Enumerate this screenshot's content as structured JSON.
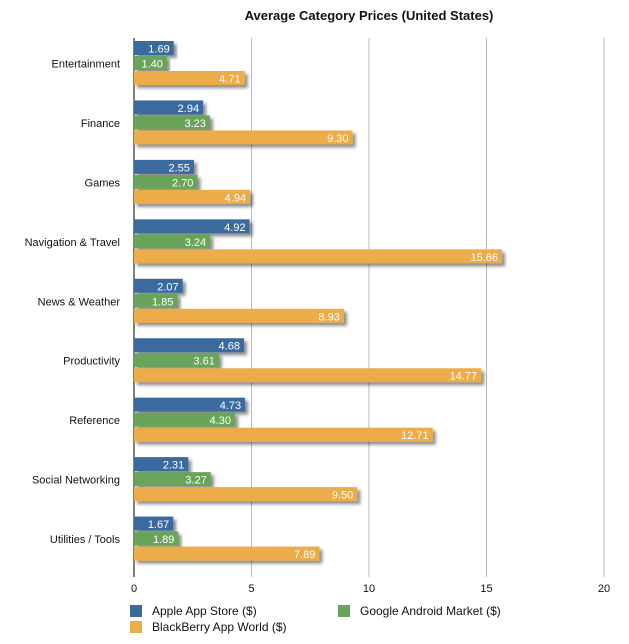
{
  "chart_data": {
    "type": "bar",
    "orientation": "horizontal",
    "title": "Average Category Prices (United States)",
    "xlabel": "",
    "ylabel": "",
    "xlim": [
      0,
      20
    ],
    "x_ticks": [
      "0",
      "5",
      "10",
      "15",
      "20"
    ],
    "grid": true,
    "legend_position": "bottom",
    "categories": [
      "Entertainment",
      "Finance",
      "Games",
      "Navigation & Travel",
      "News & Weather",
      "Productivity",
      "Reference",
      "Social Networking",
      "Utilities / Tools"
    ],
    "series": [
      {
        "name": "Apple App Store ($)",
        "color": "#3a6a9e",
        "values": [
          1.69,
          2.94,
          2.55,
          4.92,
          2.07,
          4.68,
          4.73,
          2.31,
          1.67
        ],
        "labels": [
          "1.69",
          "2.94",
          "2.55",
          "4.92",
          "2.07",
          "4.68",
          "4.73",
          "2.31",
          "1.67"
        ]
      },
      {
        "name": "Google Android Market ($)",
        "color": "#6aa35a",
        "values": [
          1.4,
          3.23,
          2.7,
          3.24,
          1.85,
          3.61,
          4.3,
          3.27,
          1.89
        ],
        "labels": [
          "1.40",
          "3.23",
          "2.70",
          "3.24",
          "1.85",
          "3.61",
          "4.30",
          "3.27",
          "1.89"
        ]
      },
      {
        "name": "BlackBerry App World ($)",
        "color": "#ecac48",
        "values": [
          4.71,
          9.3,
          4.94,
          15.66,
          8.93,
          14.77,
          12.71,
          9.5,
          7.89
        ],
        "labels": [
          "4.71",
          "9.30",
          "4.94",
          "15.66",
          "8.93",
          "14.77",
          "12.71",
          "9.50",
          "7.89"
        ]
      }
    ]
  }
}
